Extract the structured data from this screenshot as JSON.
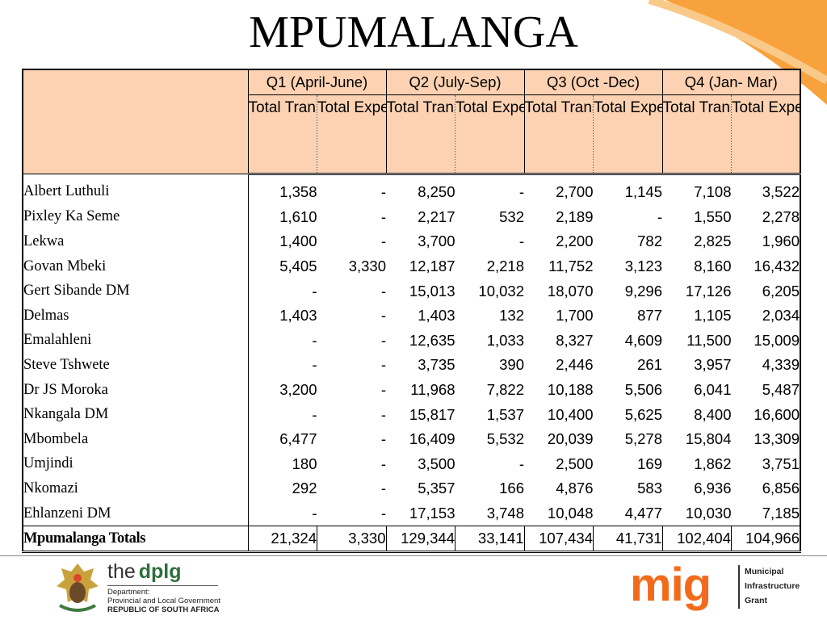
{
  "title": "MPUMALANGA",
  "quarters": [
    "Q1 (April-June)",
    "Q2 (July-Sep)",
    "Q3 (Oct -Dec)",
    "Q4 (Jan- Mar)"
  ],
  "subheaders": [
    "Total Transferred",
    "Total Expenditure",
    "Total Transferred",
    "Total Expenditure",
    "Total Transferred",
    "Total Expenditure",
    "Total Transferred",
    "Total Expenditure"
  ],
  "rows": [
    {
      "name": "Albert Luthuli",
      "values": [
        "1,358",
        "-",
        "8,250",
        "-",
        "2,700",
        "1,145",
        "7,108",
        "3,522"
      ]
    },
    {
      "name": "Pixley Ka Seme",
      "values": [
        "1,610",
        "-",
        "2,217",
        "532",
        "2,189",
        "-",
        "1,550",
        "2,278"
      ]
    },
    {
      "name": "Lekwa",
      "values": [
        "1,400",
        "-",
        "3,700",
        "-",
        "2,200",
        "782",
        "2,825",
        "1,960"
      ]
    },
    {
      "name": "Govan Mbeki",
      "values": [
        "5,405",
        "3,330",
        "12,187",
        "2,218",
        "11,752",
        "3,123",
        "8,160",
        "16,432"
      ]
    },
    {
      "name": "Gert Sibande DM",
      "values": [
        "-",
        "-",
        "15,013",
        "10,032",
        "18,070",
        "9,296",
        "17,126",
        "6,205"
      ]
    },
    {
      "name": "Delmas",
      "values": [
        "1,403",
        "-",
        "1,403",
        "132",
        "1,700",
        "877",
        "1,105",
        "2,034"
      ]
    },
    {
      "name": "Emalahleni",
      "values": [
        "-",
        "-",
        "12,635",
        "1,033",
        "8,327",
        "4,609",
        "11,500",
        "15,009"
      ]
    },
    {
      "name": "Steve Tshwete",
      "values": [
        "-",
        "-",
        "3,735",
        "390",
        "2,446",
        "261",
        "3,957",
        "4,339"
      ]
    },
    {
      "name": "Dr JS Moroka",
      "values": [
        "3,200",
        "-",
        "11,968",
        "7,822",
        "10,188",
        "5,506",
        "6,041",
        "5,487"
      ]
    },
    {
      "name": "Nkangala DM",
      "values": [
        "-",
        "-",
        "15,817",
        "1,537",
        "10,400",
        "5,625",
        "8,400",
        "16,600"
      ]
    },
    {
      "name": "Mbombela",
      "values": [
        "6,477",
        "-",
        "16,409",
        "5,532",
        "20,039",
        "5,278",
        "15,804",
        "13,309"
      ]
    },
    {
      "name": "Umjindi",
      "values": [
        "180",
        "-",
        "3,500",
        "-",
        "2,500",
        "169",
        "1,862",
        "3,751"
      ]
    },
    {
      "name": "Nkomazi",
      "values": [
        "292",
        "-",
        "5,357",
        "166",
        "4,876",
        "583",
        "6,936",
        "6,856"
      ]
    },
    {
      "name": "Ehlanzeni DM",
      "values": [
        "-",
        "-",
        "17,153",
        "3,748",
        "10,048",
        "4,477",
        "10,030",
        "7,185"
      ]
    }
  ],
  "totals": {
    "name": "Mpumalanga Totals",
    "values": [
      "21,324",
      "3,330",
      "129,344",
      "33,141",
      "107,434",
      "41,731",
      "102,404",
      "104,966"
    ]
  },
  "footer": {
    "dplg_prefix": "the",
    "dplg_brand": "dplg",
    "dplg_line1": "Department:",
    "dplg_line2": "Provincial and Local Government",
    "dplg_line3": "REPUBLIC OF SOUTH AFRICA",
    "mig_logo": "mig",
    "mig_line1": "Municipal",
    "mig_line2": "Infrastructure",
    "mig_line3": "Grant"
  },
  "colors": {
    "header_fill": "#fcd2b2",
    "swoosh": "#f7a23c",
    "mig_orange": "#f26b1d",
    "dplg_green": "#2f6e3b"
  }
}
